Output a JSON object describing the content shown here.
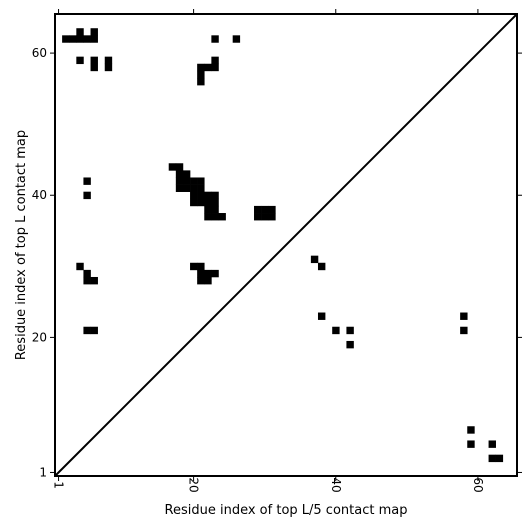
{
  "chart_data": {
    "type": "heatmap",
    "title": "",
    "xlabel": "Residue index of top L/5 contact map",
    "ylabel": "Residue index of top L contact map",
    "xlim": [
      0.5,
      65.5
    ],
    "ylim": [
      0.5,
      65.5
    ],
    "xticks": [
      {
        "value": 1,
        "label": "1"
      },
      {
        "value": 20,
        "label": "20"
      },
      {
        "value": 40,
        "label": "40"
      },
      {
        "value": 60,
        "label": "60"
      }
    ],
    "yticks": [
      {
        "value": 1,
        "label": "1"
      },
      {
        "value": 20,
        "label": "20"
      },
      {
        "value": 40,
        "label": "40"
      },
      {
        "value": 60,
        "label": "60"
      }
    ],
    "grid": false,
    "diagonal": {
      "from": [
        0.5,
        0.5
      ],
      "to": [
        65.5,
        65.5
      ],
      "color": "#000000"
    },
    "cell_color": "#000000",
    "background_color": "#ffffff",
    "points": [
      [
        2,
        62
      ],
      [
        3,
        62
      ],
      [
        4,
        62
      ],
      [
        5,
        62
      ],
      [
        6,
        62
      ],
      [
        4,
        63
      ],
      [
        6,
        63
      ],
      [
        4,
        59
      ],
      [
        6,
        58
      ],
      [
        6,
        59
      ],
      [
        8,
        58
      ],
      [
        8,
        59
      ],
      [
        23,
        62
      ],
      [
        26,
        62
      ],
      [
        21,
        56
      ],
      [
        21,
        57
      ],
      [
        21,
        58
      ],
      [
        22,
        58
      ],
      [
        23,
        58
      ],
      [
        23,
        59
      ],
      [
        17,
        44
      ],
      [
        18,
        44
      ],
      [
        18,
        43
      ],
      [
        19,
        43
      ],
      [
        18,
        42
      ],
      [
        19,
        42
      ],
      [
        20,
        42
      ],
      [
        21,
        42
      ],
      [
        18,
        41
      ],
      [
        19,
        41
      ],
      [
        20,
        41
      ],
      [
        21,
        41
      ],
      [
        20,
        40
      ],
      [
        21,
        40
      ],
      [
        22,
        40
      ],
      [
        23,
        40
      ],
      [
        20,
        39
      ],
      [
        21,
        39
      ],
      [
        22,
        39
      ],
      [
        23,
        39
      ],
      [
        22,
        38
      ],
      [
        23,
        38
      ],
      [
        22,
        37
      ],
      [
        23,
        37
      ],
      [
        24,
        37
      ],
      [
        29,
        38
      ],
      [
        30,
        38
      ],
      [
        31,
        38
      ],
      [
        29,
        37
      ],
      [
        30,
        37
      ],
      [
        31,
        37
      ],
      [
        5,
        42
      ],
      [
        5,
        40
      ],
      [
        4,
        30
      ],
      [
        5,
        29
      ],
      [
        5,
        28
      ],
      [
        6,
        28
      ],
      [
        20,
        30
      ],
      [
        21,
        30
      ],
      [
        21,
        29
      ],
      [
        22,
        29
      ],
      [
        23,
        29
      ],
      [
        21,
        28
      ],
      [
        22,
        28
      ],
      [
        37,
        31
      ],
      [
        38,
        30
      ],
      [
        38,
        23
      ],
      [
        40,
        21
      ],
      [
        42,
        21
      ],
      [
        42,
        19
      ],
      [
        5,
        21
      ],
      [
        6,
        21
      ],
      [
        58,
        23
      ],
      [
        58,
        21
      ],
      [
        59,
        7
      ],
      [
        59,
        5
      ],
      [
        62,
        5
      ],
      [
        62,
        3
      ],
      [
        63,
        3
      ]
    ]
  }
}
